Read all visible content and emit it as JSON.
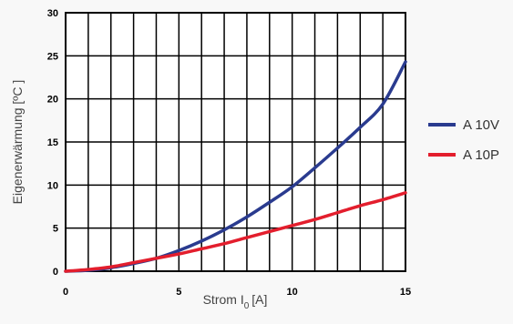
{
  "chart_data": {
    "type": "line",
    "xlabel": "Strom I",
    "xlabel_sub": "0",
    "xlabel_unit": "[A]",
    "ylabel": "Eigenerwärmung [ºC ]",
    "xlim": [
      0,
      15
    ],
    "ylim": [
      0,
      30
    ],
    "x_ticks": [
      0,
      5,
      10,
      15
    ],
    "y_ticks": [
      0,
      5,
      10,
      15,
      20,
      25,
      30
    ],
    "x_gridlines": [
      0,
      1,
      2,
      3,
      4,
      5,
      6,
      7,
      8,
      9,
      10,
      11,
      12,
      13,
      14,
      15
    ],
    "y_gridlines": [
      0,
      5,
      10,
      15,
      20,
      25,
      30
    ],
    "grid": true,
    "legend_position": "right",
    "series": [
      {
        "name": "A 10V",
        "color": "#2a3b8f",
        "x": [
          0,
          1,
          2,
          3,
          4,
          5,
          6,
          7,
          8,
          9,
          10,
          11,
          12,
          13,
          14,
          15
        ],
        "y": [
          0,
          0.1,
          0.4,
          0.9,
          1.5,
          2.4,
          3.5,
          4.8,
          6.3,
          8.0,
          9.8,
          12.0,
          14.3,
          16.7,
          19.4,
          24.3
        ]
      },
      {
        "name": "A 10P",
        "color": "#e31e2d",
        "x": [
          0,
          1,
          2,
          3,
          4,
          5,
          6,
          7,
          8,
          9,
          10,
          11,
          12,
          13,
          14,
          15
        ],
        "y": [
          0,
          0.2,
          0.5,
          1.0,
          1.5,
          2.0,
          2.6,
          3.2,
          3.9,
          4.6,
          5.3,
          6.0,
          6.8,
          7.6,
          8.3,
          9.1
        ]
      }
    ]
  }
}
